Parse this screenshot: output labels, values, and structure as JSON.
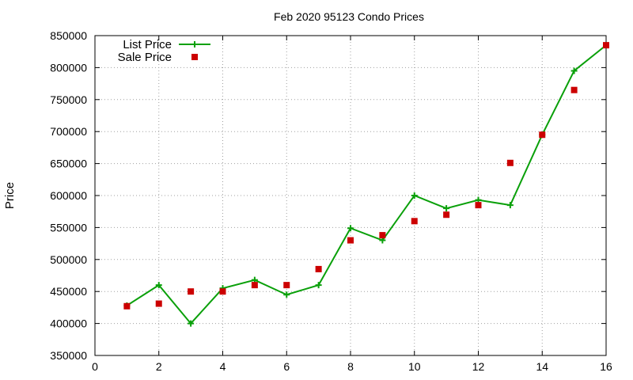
{
  "chart_data": {
    "type": "line",
    "title": "Feb 2020 95123 Condo Prices",
    "xlabel": "",
    "ylabel": "Price",
    "xlim": [
      0,
      16
    ],
    "ylim": [
      350000,
      850000
    ],
    "xticks": [
      0,
      2,
      4,
      6,
      8,
      10,
      12,
      14,
      16
    ],
    "yticks": [
      350000,
      400000,
      450000,
      500000,
      550000,
      600000,
      650000,
      700000,
      750000,
      800000,
      850000
    ],
    "grid": true,
    "legend_position": "top-left",
    "series": [
      {
        "name": "List Price",
        "style": "line+cross",
        "color": "#0aa00a",
        "x": [
          1,
          2,
          3,
          4,
          5,
          6,
          7,
          8,
          9,
          10,
          11,
          12,
          13,
          14,
          15,
          16
        ],
        "y": [
          428000,
          460000,
          400000,
          455000,
          468000,
          445000,
          460000,
          549000,
          530000,
          600000,
          580000,
          593000,
          585000,
          695000,
          795000,
          835000
        ]
      },
      {
        "name": "Sale Price",
        "style": "square",
        "color": "#cc0000",
        "x": [
          1,
          2,
          3,
          4,
          5,
          6,
          7,
          8,
          9,
          10,
          11,
          12,
          13,
          14,
          15,
          16
        ],
        "y": [
          427000,
          431000,
          450000,
          450000,
          460000,
          460000,
          485000,
          530000,
          538000,
          560000,
          570000,
          585000,
          651000,
          695000,
          765000,
          835000
        ]
      }
    ]
  }
}
